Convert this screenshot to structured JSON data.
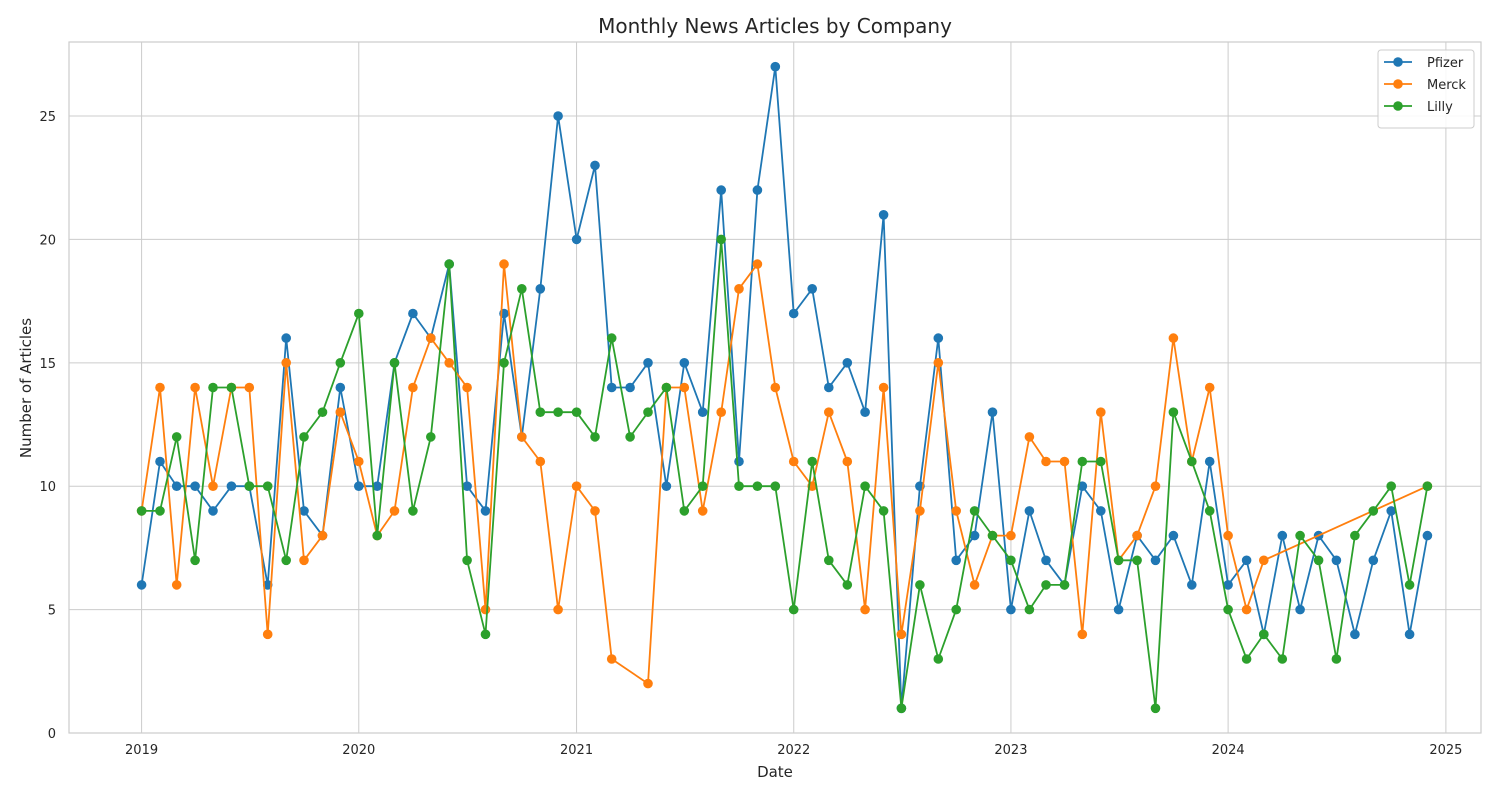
{
  "chart_data": {
    "type": "line",
    "title": "Monthly News Articles by Company",
    "xlabel": "Date",
    "ylabel": "Number of Articles",
    "ylim": [
      0,
      28
    ],
    "xlim": [
      "2018-09-01",
      "2025-03-01"
    ],
    "x_ticks": [
      "2019",
      "2020",
      "2021",
      "2022",
      "2023",
      "2024",
      "2025"
    ],
    "y_ticks": [
      0,
      5,
      10,
      15,
      20,
      25
    ],
    "grid": true,
    "legend_position": "top-right",
    "series": [
      {
        "name": "Pfizer",
        "color": "#1f77b4",
        "points": [
          [
            "2019-01-01",
            6
          ],
          [
            "2019-02-01",
            11
          ],
          [
            "2019-03-01",
            10
          ],
          [
            "2019-04-01",
            10
          ],
          [
            "2019-05-01",
            9
          ],
          [
            "2019-06-01",
            10
          ],
          [
            "2019-07-01",
            10
          ],
          [
            "2019-08-01",
            6
          ],
          [
            "2019-09-01",
            16
          ],
          [
            "2019-10-01",
            9
          ],
          [
            "2019-11-01",
            8
          ],
          [
            "2019-12-01",
            14
          ],
          [
            "2020-01-01",
            10
          ],
          [
            "2020-02-01",
            10
          ],
          [
            "2020-03-01",
            15
          ],
          [
            "2020-04-01",
            17
          ],
          [
            "2020-05-01",
            16
          ],
          [
            "2020-06-01",
            19
          ],
          [
            "2020-07-01",
            10
          ],
          [
            "2020-08-01",
            9
          ],
          [
            "2020-09-01",
            17
          ],
          [
            "2020-10-01",
            12
          ],
          [
            "2020-11-01",
            18
          ],
          [
            "2020-12-01",
            25
          ],
          [
            "2021-01-01",
            20
          ],
          [
            "2021-02-01",
            23
          ],
          [
            "2021-03-01",
            14
          ],
          [
            "2021-04-01",
            14
          ],
          [
            "2021-05-01",
            15
          ],
          [
            "2021-06-01",
            10
          ],
          [
            "2021-07-01",
            15
          ],
          [
            "2021-08-01",
            13
          ],
          [
            "2021-09-01",
            22
          ],
          [
            "2021-10-01",
            11
          ],
          [
            "2021-11-01",
            22
          ],
          [
            "2021-12-01",
            27
          ],
          [
            "2022-01-01",
            17
          ],
          [
            "2022-02-01",
            18
          ],
          [
            "2022-03-01",
            14
          ],
          [
            "2022-04-01",
            15
          ],
          [
            "2022-05-01",
            13
          ],
          [
            "2022-06-01",
            21
          ],
          [
            "2022-07-01",
            1
          ],
          [
            "2022-08-01",
            10
          ],
          [
            "2022-09-01",
            16
          ],
          [
            "2022-10-01",
            7
          ],
          [
            "2022-11-01",
            8
          ],
          [
            "2022-12-01",
            13
          ],
          [
            "2023-01-01",
            5
          ],
          [
            "2023-02-01",
            9
          ],
          [
            "2023-03-01",
            7
          ],
          [
            "2023-04-01",
            6
          ],
          [
            "2023-05-01",
            10
          ],
          [
            "2023-06-01",
            9
          ],
          [
            "2023-07-01",
            5
          ],
          [
            "2023-08-01",
            8
          ],
          [
            "2023-09-01",
            7
          ],
          [
            "2023-10-01",
            8
          ],
          [
            "2023-11-01",
            6
          ],
          [
            "2023-12-01",
            11
          ],
          [
            "2024-01-01",
            6
          ],
          [
            "2024-02-01",
            7
          ],
          [
            "2024-03-01",
            4
          ],
          [
            "2024-04-01",
            8
          ],
          [
            "2024-05-01",
            5
          ],
          [
            "2024-06-01",
            8
          ],
          [
            "2024-07-01",
            7
          ],
          [
            "2024-08-01",
            4
          ],
          [
            "2024-09-01",
            7
          ],
          [
            "2024-10-01",
            9
          ],
          [
            "2024-11-01",
            4
          ],
          [
            "2024-12-01",
            8
          ]
        ]
      },
      {
        "name": "Merck",
        "color": "#ff7f0e",
        "points": [
          [
            "2019-01-01",
            9
          ],
          [
            "2019-02-01",
            14
          ],
          [
            "2019-03-01",
            6
          ],
          [
            "2019-04-01",
            14
          ],
          [
            "2019-05-01",
            10
          ],
          [
            "2019-06-01",
            14
          ],
          [
            "2019-07-01",
            14
          ],
          [
            "2019-08-01",
            4
          ],
          [
            "2019-09-01",
            15
          ],
          [
            "2019-10-01",
            7
          ],
          [
            "2019-11-01",
            8
          ],
          [
            "2019-12-01",
            13
          ],
          [
            "2020-01-01",
            11
          ],
          [
            "2020-02-01",
            8
          ],
          [
            "2020-03-01",
            9
          ],
          [
            "2020-04-01",
            14
          ],
          [
            "2020-05-01",
            16
          ],
          [
            "2020-06-01",
            15
          ],
          [
            "2020-07-01",
            14
          ],
          [
            "2020-08-01",
            5
          ],
          [
            "2020-09-01",
            19
          ],
          [
            "2020-10-01",
            12
          ],
          [
            "2020-11-01",
            11
          ],
          [
            "2020-12-01",
            5
          ],
          [
            "2021-01-01",
            10
          ],
          [
            "2021-02-01",
            9
          ],
          [
            "2021-03-01",
            3
          ],
          [
            "2021-05-01",
            2
          ],
          [
            "2021-06-01",
            14
          ],
          [
            "2021-07-01",
            14
          ],
          [
            "2021-08-01",
            9
          ],
          [
            "2021-09-01",
            13
          ],
          [
            "2021-10-01",
            18
          ],
          [
            "2021-11-01",
            19
          ],
          [
            "2021-12-01",
            14
          ],
          [
            "2022-01-01",
            11
          ],
          [
            "2022-02-01",
            10
          ],
          [
            "2022-03-01",
            13
          ],
          [
            "2022-04-01",
            11
          ],
          [
            "2022-05-01",
            5
          ],
          [
            "2022-06-01",
            14
          ],
          [
            "2022-07-01",
            4
          ],
          [
            "2022-08-01",
            9
          ],
          [
            "2022-09-01",
            15
          ],
          [
            "2022-10-01",
            9
          ],
          [
            "2022-11-01",
            6
          ],
          [
            "2022-12-01",
            8
          ],
          [
            "2023-01-01",
            8
          ],
          [
            "2023-02-01",
            12
          ],
          [
            "2023-03-01",
            11
          ],
          [
            "2023-04-01",
            11
          ],
          [
            "2023-05-01",
            4
          ],
          [
            "2023-06-01",
            13
          ],
          [
            "2023-07-01",
            7
          ],
          [
            "2023-08-01",
            8
          ],
          [
            "2023-09-01",
            10
          ],
          [
            "2023-10-01",
            16
          ],
          [
            "2023-11-01",
            11
          ],
          [
            "2023-12-01",
            14
          ],
          [
            "2024-01-01",
            8
          ],
          [
            "2024-02-01",
            5
          ],
          [
            "2024-03-01",
            7
          ],
          [
            "2024-12-01",
            10
          ]
        ]
      },
      {
        "name": "Lilly",
        "color": "#2ca02c",
        "points": [
          [
            "2019-01-01",
            9
          ],
          [
            "2019-02-01",
            9
          ],
          [
            "2019-03-01",
            12
          ],
          [
            "2019-04-01",
            7
          ],
          [
            "2019-05-01",
            14
          ],
          [
            "2019-06-01",
            14
          ],
          [
            "2019-07-01",
            10
          ],
          [
            "2019-08-01",
            10
          ],
          [
            "2019-09-01",
            7
          ],
          [
            "2019-10-01",
            12
          ],
          [
            "2019-11-01",
            13
          ],
          [
            "2019-12-01",
            15
          ],
          [
            "2020-01-01",
            17
          ],
          [
            "2020-02-01",
            8
          ],
          [
            "2020-03-01",
            15
          ],
          [
            "2020-04-01",
            9
          ],
          [
            "2020-05-01",
            12
          ],
          [
            "2020-06-01",
            19
          ],
          [
            "2020-07-01",
            7
          ],
          [
            "2020-08-01",
            4
          ],
          [
            "2020-09-01",
            15
          ],
          [
            "2020-10-01",
            18
          ],
          [
            "2020-11-01",
            13
          ],
          [
            "2020-12-01",
            13
          ],
          [
            "2021-01-01",
            13
          ],
          [
            "2021-02-01",
            12
          ],
          [
            "2021-03-01",
            16
          ],
          [
            "2021-04-01",
            12
          ],
          [
            "2021-05-01",
            13
          ],
          [
            "2021-06-01",
            14
          ],
          [
            "2021-07-01",
            9
          ],
          [
            "2021-08-01",
            10
          ],
          [
            "2021-09-01",
            20
          ],
          [
            "2021-10-01",
            10
          ],
          [
            "2021-11-01",
            10
          ],
          [
            "2021-12-01",
            10
          ],
          [
            "2022-01-01",
            5
          ],
          [
            "2022-02-01",
            11
          ],
          [
            "2022-03-01",
            7
          ],
          [
            "2022-04-01",
            6
          ],
          [
            "2022-05-01",
            10
          ],
          [
            "2022-06-01",
            9
          ],
          [
            "2022-07-01",
            1
          ],
          [
            "2022-08-01",
            6
          ],
          [
            "2022-09-01",
            3
          ],
          [
            "2022-10-01",
            5
          ],
          [
            "2022-11-01",
            9
          ],
          [
            "2022-12-01",
            8
          ],
          [
            "2023-01-01",
            7
          ],
          [
            "2023-02-01",
            5
          ],
          [
            "2023-03-01",
            6
          ],
          [
            "2023-04-01",
            6
          ],
          [
            "2023-05-01",
            11
          ],
          [
            "2023-06-01",
            11
          ],
          [
            "2023-07-01",
            7
          ],
          [
            "2023-08-01",
            7
          ],
          [
            "2023-09-01",
            1
          ],
          [
            "2023-10-01",
            13
          ],
          [
            "2023-11-01",
            11
          ],
          [
            "2023-12-01",
            9
          ],
          [
            "2024-01-01",
            5
          ],
          [
            "2024-02-01",
            3
          ],
          [
            "2024-03-01",
            4
          ],
          [
            "2024-04-01",
            3
          ],
          [
            "2024-05-01",
            8
          ],
          [
            "2024-06-01",
            7
          ],
          [
            "2024-07-01",
            3
          ],
          [
            "2024-08-01",
            8
          ],
          [
            "2024-09-01",
            9
          ],
          [
            "2024-10-01",
            10
          ],
          [
            "2024-11-01",
            6
          ],
          [
            "2024-12-01",
            10
          ]
        ]
      }
    ]
  }
}
